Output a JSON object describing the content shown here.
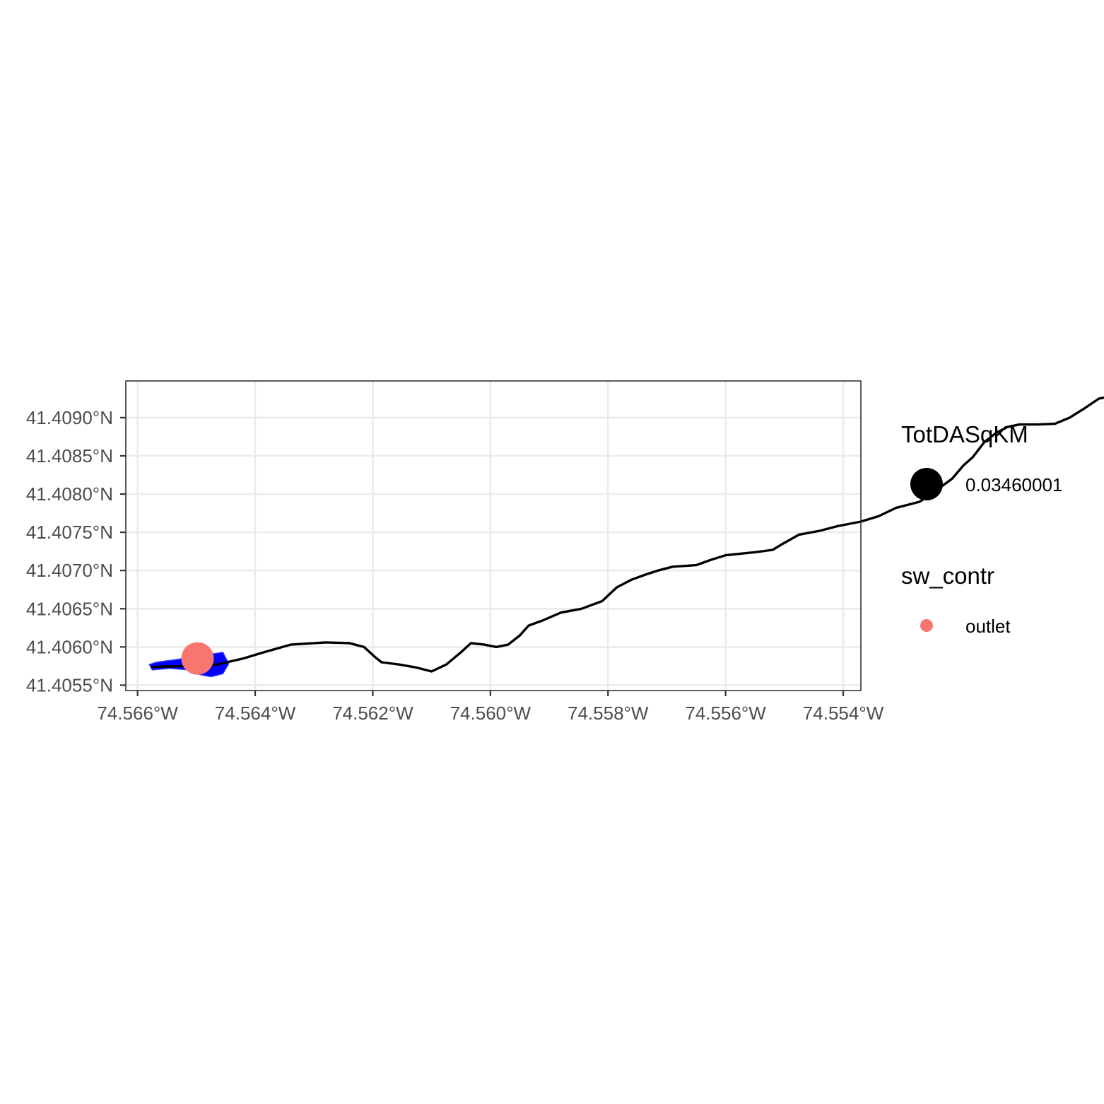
{
  "map": {
    "type": "line",
    "title": "",
    "xlabel": "",
    "ylabel": "",
    "xlim": [
      -74.5662,
      -74.5537
    ],
    "ylim": [
      41.40543,
      41.40948
    ],
    "grid": true,
    "x_ticks": [
      {
        "value": -74.566,
        "label": "74.566°W"
      },
      {
        "value": -74.564,
        "label": "74.564°W"
      },
      {
        "value": -74.562,
        "label": "74.562°W"
      },
      {
        "value": -74.56,
        "label": "74.560°W"
      },
      {
        "value": -74.558,
        "label": "74.558°W"
      },
      {
        "value": -74.556,
        "label": "74.556°W"
      },
      {
        "value": -74.554,
        "label": "74.554°W"
      }
    ],
    "y_ticks": [
      {
        "value": 41.4055,
        "label": "41.4055°N"
      },
      {
        "value": 41.406,
        "label": "41.4060°N"
      },
      {
        "value": 41.4065,
        "label": "41.4065°N"
      },
      {
        "value": 41.407,
        "label": "41.4070°N"
      },
      {
        "value": 41.4075,
        "label": "41.4075°N"
      },
      {
        "value": 41.408,
        "label": "41.4080°N"
      },
      {
        "value": 41.4085,
        "label": "41.4085°N"
      },
      {
        "value": 41.409,
        "label": "41.4090°N"
      }
    ],
    "flowline": {
      "color": "#000000",
      "points": [
        [
          -74.56575,
          41.40574
        ],
        [
          -74.5652,
          41.40575
        ],
        [
          -74.56465,
          41.40577
        ],
        [
          -74.5642,
          41.40585
        ],
        [
          -74.5639,
          41.40592
        ],
        [
          -74.5634,
          41.40603
        ],
        [
          -74.5628,
          41.40606
        ],
        [
          -74.5624,
          41.40605
        ],
        [
          -74.56215,
          41.406
        ],
        [
          -74.56195,
          41.40586
        ],
        [
          -74.56185,
          41.4058
        ],
        [
          -74.56155,
          41.40577
        ],
        [
          -74.56125,
          41.40573
        ],
        [
          -74.561,
          41.40568
        ],
        [
          -74.56075,
          41.40577
        ],
        [
          -74.5605,
          41.40593
        ],
        [
          -74.56033,
          41.40605
        ],
        [
          -74.5601,
          41.40603
        ],
        [
          -74.5599,
          41.406
        ],
        [
          -74.5597,
          41.40603
        ],
        [
          -74.5595,
          41.40615
        ],
        [
          -74.55935,
          41.40628
        ],
        [
          -74.5591,
          41.40635
        ],
        [
          -74.5588,
          41.40645
        ],
        [
          -74.55845,
          41.4065
        ],
        [
          -74.5581,
          41.4066
        ],
        [
          -74.55785,
          41.40678
        ],
        [
          -74.5576,
          41.40688
        ],
        [
          -74.55735,
          41.40695
        ],
        [
          -74.55715,
          41.407
        ],
        [
          -74.5569,
          41.40705
        ],
        [
          -74.5565,
          41.40707
        ],
        [
          -74.55625,
          41.40714
        ],
        [
          -74.556,
          41.4072
        ],
        [
          -74.5555,
          41.40724
        ],
        [
          -74.5552,
          41.40727
        ],
        [
          -74.55505,
          41.40734
        ],
        [
          -74.55475,
          41.40747
        ],
        [
          -74.5544,
          41.40752
        ],
        [
          -74.5541,
          41.40758
        ],
        [
          -74.5537,
          41.40764
        ],
        [
          -74.5534,
          41.40771
        ],
        [
          -74.5531,
          41.40782
        ],
        [
          -74.5527,
          41.4079
        ],
        [
          -74.55245,
          41.40803
        ],
        [
          -74.55215,
          41.4082
        ],
        [
          -74.55195,
          41.40838
        ],
        [
          -74.5518,
          41.40848
        ],
        [
          -74.5516,
          41.40868
        ],
        [
          -74.5514,
          41.4088
        ],
        [
          -74.5512,
          41.40888
        ],
        [
          -74.551,
          41.40891
        ],
        [
          -74.5507,
          41.40891
        ],
        [
          -74.5504,
          41.40892
        ],
        [
          -74.55015,
          41.409
        ],
        [
          -74.5499,
          41.40912
        ],
        [
          -74.54965,
          41.40925
        ],
        [
          -74.54935,
          41.40929
        ],
        [
          -74.54905,
          41.40926
        ],
        [
          -74.54875,
          41.40912
        ],
        [
          -74.54835,
          41.409
        ],
        [
          -74.54805,
          41.40897
        ]
      ]
    },
    "catchment": {
      "color": "#0000ff",
      "points": [
        [
          -74.5658,
          41.40577
        ],
        [
          -74.56568,
          41.4058
        ],
        [
          -74.5653,
          41.40584
        ],
        [
          -74.5648,
          41.4059
        ],
        [
          -74.56455,
          41.40593
        ],
        [
          -74.56445,
          41.40578
        ],
        [
          -74.56455,
          41.40565
        ],
        [
          -74.56475,
          41.40561
        ],
        [
          -74.56495,
          41.40564
        ],
        [
          -74.56515,
          41.4057
        ],
        [
          -74.56545,
          41.40572
        ],
        [
          -74.56575,
          41.4057
        ]
      ]
    },
    "outlet": {
      "lon": -74.56498,
      "lat": 41.40585,
      "color": "#f8766d"
    }
  },
  "legend": {
    "placement": "right",
    "size_title": "TotDASqKM",
    "size_key_label": "0.03460001",
    "color_title": "sw_contr",
    "color_key_label": "outlet",
    "color_key_color": "#f8766d"
  }
}
